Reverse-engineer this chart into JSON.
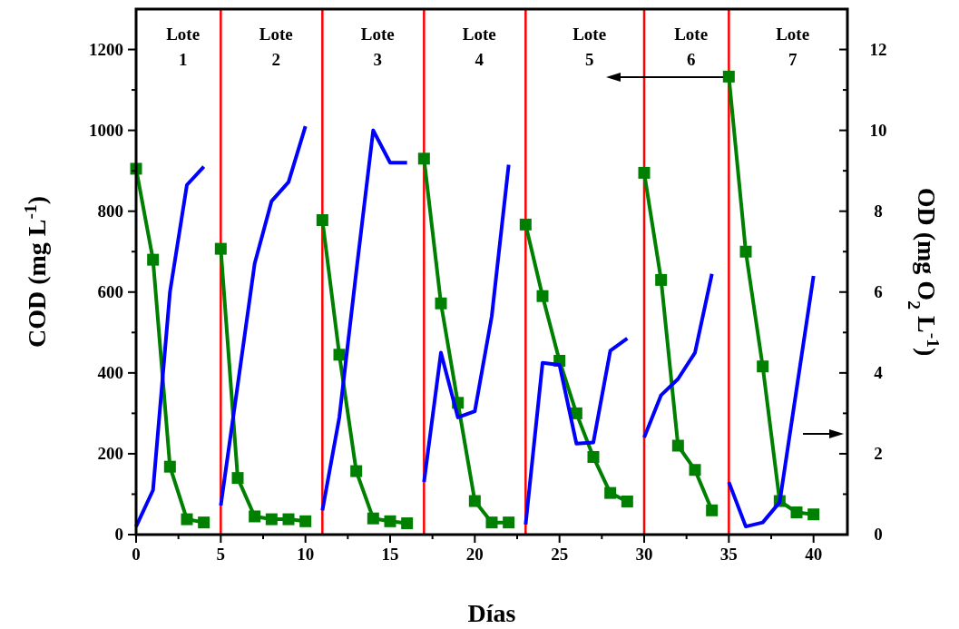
{
  "chart_data": {
    "type": "line",
    "xlabel": "Días",
    "ylabel": "COD (mg L$^{-1}$)",
    "y2label": "OD (mg O$_{2}$ L$^{-1}$)",
    "xlim": [
      0,
      42
    ],
    "xticks": [
      0,
      {
        "value": 2.5,
        "label": null
      },
      5,
      {
        "value": 7.5,
        "label": null
      },
      10,
      {
        "value": 12.5,
        "label": null
      },
      15,
      {
        "value": 17.5,
        "label": null
      },
      20,
      {
        "value": 22.5,
        "label": null
      },
      25,
      {
        "value": 27.5,
        "label": null
      },
      30,
      {
        "value": 32.5,
        "label": null
      },
      35,
      {
        "value": 37.5,
        "label": null
      },
      40
    ],
    "ylim": [
      0,
      1300
    ],
    "yticks": [
      0,
      {
        "value": 100,
        "label": null
      },
      200,
      {
        "value": 300,
        "label": null
      },
      400,
      {
        "value": 500,
        "label": null
      },
      600,
      {
        "value": 700,
        "label": null
      },
      800,
      {
        "value": 900,
        "label": null
      },
      1000,
      {
        "value": 1100,
        "label": null
      },
      1200
    ],
    "y2lim": [
      0,
      13
    ],
    "y2ticks": [
      0,
      {
        "value": 1,
        "label": null
      },
      2,
      {
        "value": 3,
        "label": null
      },
      4,
      {
        "value": 5,
        "label": null
      },
      6,
      {
        "value": 7,
        "label": null
      },
      8,
      {
        "value": 9,
        "label": null
      },
      10,
      {
        "value": 11,
        "label": null
      },
      12
    ],
    "grid": false,
    "series": [
      {
        "color": "#008000",
        "marker": "square",
        "x": [
          0,
          1,
          2,
          3,
          4
        ],
        "values": [
          905,
          680,
          168,
          38,
          30
        ]
      },
      {
        "color": "#008000",
        "marker": "square",
        "x": [
          5,
          6,
          7,
          8,
          9,
          10
        ],
        "values": [
          707,
          140,
          45,
          38,
          38,
          33
        ]
      },
      {
        "color": "#008000",
        "marker": "square",
        "x": [
          11,
          12,
          13,
          14,
          15,
          16
        ],
        "values": [
          778,
          445,
          157,
          40,
          33,
          28
        ]
      },
      {
        "color": "#008000",
        "marker": "square",
        "x": [
          17,
          18,
          19,
          20,
          21,
          22
        ],
        "values": [
          930,
          572,
          326,
          83,
          30,
          30
        ]
      },
      {
        "color": "#008000",
        "marker": "square",
        "x": [
          23,
          24,
          25,
          26,
          27,
          28,
          29
        ],
        "values": [
          767,
          590,
          430,
          300,
          192,
          103,
          82
        ]
      },
      {
        "color": "#008000",
        "marker": "square",
        "x": [
          30,
          31,
          32,
          33,
          34
        ],
        "values": [
          895,
          630,
          220,
          160,
          60
        ]
      },
      {
        "color": "#008000",
        "marker": "square",
        "x": [
          35,
          36,
          37,
          38,
          39,
          40
        ],
        "values": [
          1133,
          700,
          416,
          83,
          55,
          50
        ]
      },
      {
        "color": "#0000ff",
        "marker": "none",
        "axis": "y2",
        "x": [
          0,
          1,
          2,
          3,
          4
        ],
        "values": [
          0.2,
          1.1,
          6.0,
          8.65,
          9.1
        ]
      },
      {
        "color": "#0000ff",
        "marker": "none",
        "axis": "y2",
        "x": [
          5,
          6,
          7,
          8,
          9,
          10
        ],
        "values": [
          0.72,
          3.7,
          6.7,
          8.25,
          8.72,
          10.1
        ]
      },
      {
        "color": "#0000ff",
        "marker": "none",
        "axis": "y2",
        "x": [
          11,
          12,
          13,
          14,
          15,
          16
        ],
        "values": [
          0.6,
          2.9,
          6.5,
          10.0,
          9.2,
          9.2
        ]
      },
      {
        "color": "#0000ff",
        "marker": "none",
        "axis": "y2",
        "x": [
          17,
          18,
          19,
          20,
          21,
          22
        ],
        "values": [
          1.3,
          4.5,
          2.9,
          3.05,
          5.4,
          9.15
        ]
      },
      {
        "color": "#0000ff",
        "marker": "none",
        "axis": "y2",
        "x": [
          23,
          24,
          25,
          26,
          27,
          28,
          29
        ],
        "values": [
          0.25,
          4.25,
          4.2,
          2.25,
          2.28,
          4.55,
          4.85
        ]
      },
      {
        "color": "#0000ff",
        "marker": "none",
        "axis": "y2",
        "x": [
          30,
          31,
          32,
          33,
          34
        ],
        "values": [
          2.4,
          3.45,
          3.85,
          4.5,
          6.45
        ]
      },
      {
        "color": "#0000ff",
        "marker": "none",
        "axis": "y2",
        "x": [
          35,
          36,
          37,
          38,
          39,
          40
        ],
        "values": [
          1.3,
          0.2,
          0.3,
          0.8,
          3.6,
          6.4
        ]
      }
    ],
    "ref_lines": [
      {
        "axis": "x",
        "value": 5,
        "color": "#ff0000"
      },
      {
        "axis": "x",
        "value": 11,
        "color": "#ff0000"
      },
      {
        "axis": "x",
        "value": 17,
        "color": "#ff0000"
      },
      {
        "axis": "x",
        "value": 23,
        "color": "#ff0000"
      },
      {
        "axis": "x",
        "value": 30,
        "color": "#ff0000"
      },
      {
        "axis": "x",
        "value": 35,
        "color": "#ff0000"
      }
    ],
    "annotations": [
      "Lote 1",
      "Lote 2",
      "Lote 3",
      "Lote 4",
      "Lote 5",
      "Lote 6",
      "Lote 7"
    ]
  }
}
